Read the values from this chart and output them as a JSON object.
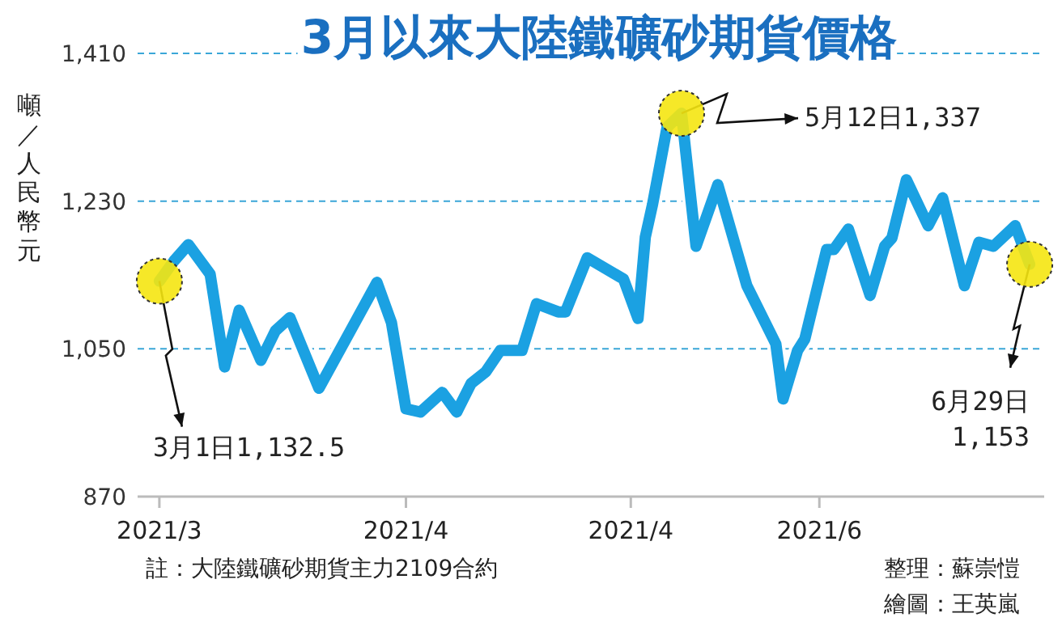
{
  "chart_data": {
    "type": "line",
    "title": "3月以來大陸鐵礦砂期貨價格",
    "ylabel": "噸／人民幣元",
    "x": [
      "2021-03-01",
      "2021-03-03",
      "2021-03-05",
      "2021-03-08",
      "2021-03-10",
      "2021-03-12",
      "2021-03-15",
      "2021-03-17",
      "2021-03-19",
      "2021-03-23",
      "2021-03-31",
      "2021-04-02",
      "2021-04-04",
      "2021-04-06",
      "2021-04-09",
      "2021-04-11",
      "2021-04-13",
      "2021-04-15",
      "2021-04-17",
      "2021-04-20",
      "2021-04-22",
      "2021-04-25",
      "2021-04-26",
      "2021-04-29",
      "2021-05-04",
      "2021-05-06",
      "2021-05-07",
      "2021-05-08",
      "2021-05-10",
      "2021-05-12",
      "2021-05-14",
      "2021-05-17",
      "2021-05-21",
      "2021-05-25",
      "2021-05-26",
      "2021-05-28",
      "2021-05-29",
      "2021-06-01",
      "2021-06-02",
      "2021-06-04",
      "2021-06-07",
      "2021-06-09",
      "2021-06-10",
      "2021-06-12",
      "2021-06-15",
      "2021-06-17",
      "2021-06-20",
      "2021-06-22",
      "2021-06-24",
      "2021-06-27",
      "2021-06-29"
    ],
    "series": [
      {
        "color": "#1ba1e2",
        "values": [
          1132.5,
          1157,
          1177,
          1141,
          1028,
          1097,
          1036,
          1072,
          1088,
          1002,
          1131,
          1082,
          977,
          973,
          997,
          973,
          1008,
          1022,
          1048,
          1048,
          1105,
          1095,
          1095,
          1161,
          1135,
          1087,
          1186,
          1226,
          1320,
          1337,
          1175,
          1250,
          1127,
          1056,
          989,
          1048,
          1062,
          1171,
          1171,
          1196,
          1115,
          1175,
          1185,
          1256,
          1200,
          1234,
          1127,
          1180,
          1175,
          1200,
          1153
        ]
      }
    ],
    "xlim": [
      "2021-02-26",
      "2021-07-01"
    ],
    "xticks": [
      {
        "value": "2021-03-01",
        "label": "2021/3"
      },
      {
        "value": "2021-04-04",
        "label": "2021/4"
      },
      {
        "value": "2021-05-05",
        "label": "2021/4"
      },
      {
        "value": "2021-05-31",
        "label": "2021/6"
      }
    ],
    "ylim": [
      870,
      1410
    ],
    "yticks": [
      {
        "value": 870,
        "label": "870"
      },
      {
        "value": 1050,
        "label": "1,050"
      },
      {
        "value": 1230,
        "label": "1,230"
      },
      {
        "value": 1410,
        "label": "1,410"
      }
    ],
    "grid": "y",
    "marker": "none",
    "line_style": "solid",
    "annotations": [
      {
        "text": "3月1日1,132.5",
        "x": "2021-03-01",
        "y": 1132.5
      },
      {
        "text": "5月12日1,337",
        "x": "2021-05-12",
        "y": 1337
      },
      {
        "text": "6月29日\n1,153",
        "x": "2021-06-29",
        "y": 1153
      },
      "註：大陸鐵礦砂期貨主力2109合約",
      "整理：蘇崇愷",
      "繪圖：王英嵐"
    ]
  }
}
